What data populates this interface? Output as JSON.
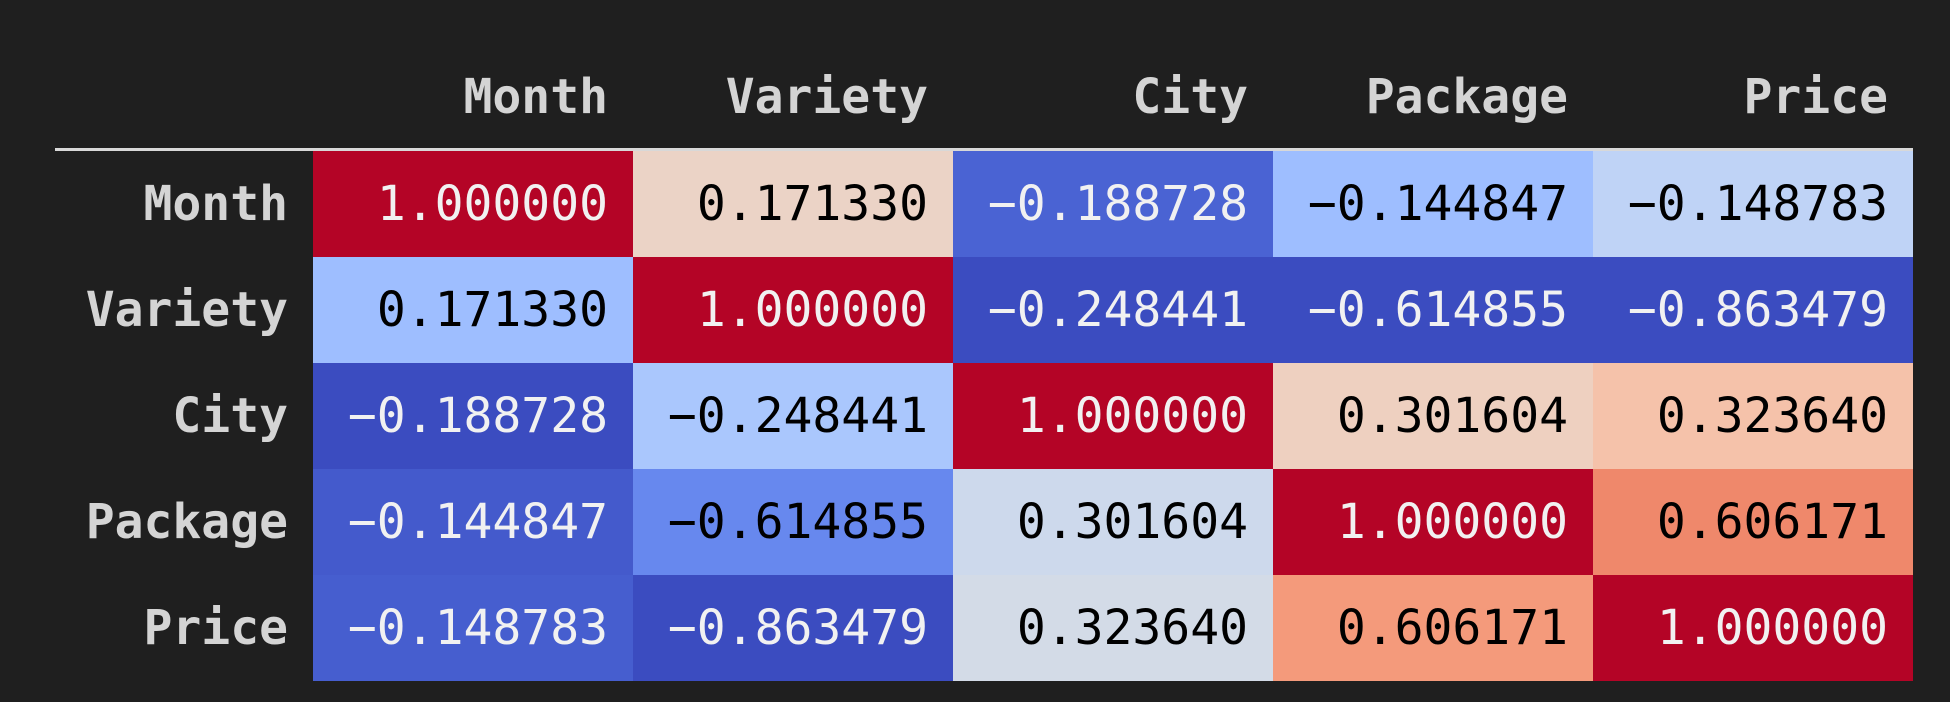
{
  "columns": [
    "Month",
    "Variety",
    "City",
    "Package",
    "Price"
  ],
  "rows": [
    {
      "label": "Month",
      "values": [
        "1.000000",
        "0.171330",
        "−0.188728",
        "−0.144847",
        "−0.148783"
      ],
      "colors": [
        "#b40426",
        "#ebd3c6",
        "#4a63d3",
        "#9ebeff",
        "#bfd3f6"
      ],
      "text_colors": [
        "#f1f1f1",
        "#000000",
        "#f1f1f1",
        "#000000",
        "#000000"
      ]
    },
    {
      "label": "Variety",
      "values": [
        "0.171330",
        "1.000000",
        "−0.248441",
        "−0.614855",
        "−0.863479"
      ],
      "colors": [
        "#9ebeff",
        "#b40426",
        "#3b4cc0",
        "#3b4cc0",
        "#3b4cc0"
      ],
      "text_colors": [
        "#000000",
        "#f1f1f1",
        "#f1f1f1",
        "#f1f1f1",
        "#f1f1f1"
      ]
    },
    {
      "label": "City",
      "values": [
        "−0.188728",
        "−0.248441",
        "1.000000",
        "0.301604",
        "0.323640"
      ],
      "colors": [
        "#3b4cc0",
        "#aac7fd",
        "#b40426",
        "#eed0c0",
        "#f5c2aa"
      ],
      "text_colors": [
        "#f1f1f1",
        "#000000",
        "#f1f1f1",
        "#000000",
        "#000000"
      ]
    },
    {
      "label": "Package",
      "values": [
        "−0.144847",
        "−0.614855",
        "0.301604",
        "1.000000",
        "0.606171"
      ],
      "colors": [
        "#445acc",
        "#6788ee",
        "#cdd9ec",
        "#b40426",
        "#ef886b"
      ],
      "text_colors": [
        "#f1f1f1",
        "#000000",
        "#000000",
        "#f1f1f1",
        "#000000"
      ]
    },
    {
      "label": "Price",
      "values": [
        "−0.148783",
        "−0.863479",
        "0.323640",
        "0.606171",
        "1.000000"
      ],
      "colors": [
        "#465ecf",
        "#3b4cc0",
        "#d3dbe7",
        "#f49a7b",
        "#b40426"
      ],
      "text_colors": [
        "#f1f1f1",
        "#f1f1f1",
        "#000000",
        "#000000",
        "#f1f1f1"
      ]
    }
  ]
}
